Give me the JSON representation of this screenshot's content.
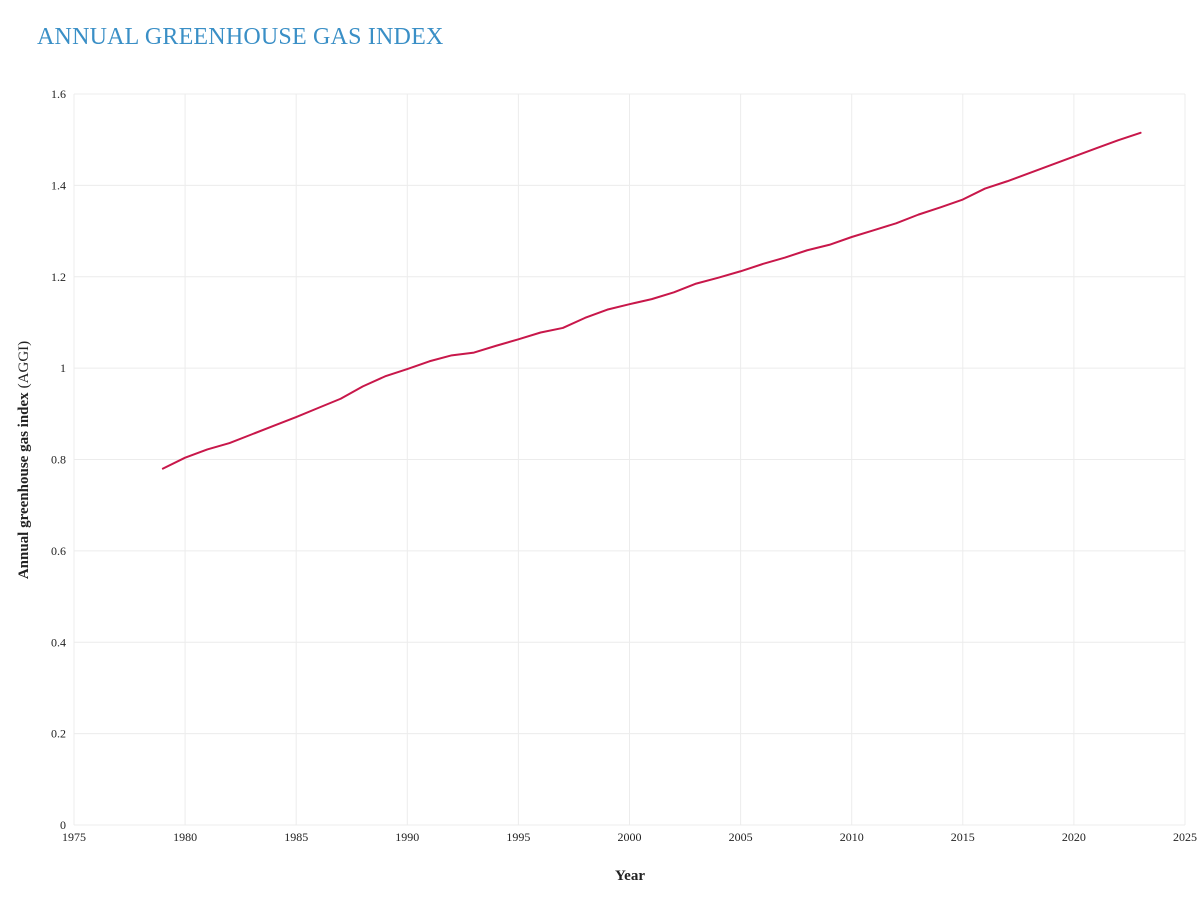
{
  "chart_data": {
    "type": "line",
    "title": "ANNUAL GREENHOUSE GAS INDEX",
    "title_color": "#3a8fc6",
    "xlabel": "Year",
    "ylabel": "Annual greenhouse gas index",
    "ylabel_unit": "(AGGI)",
    "xlim": [
      1975,
      2025
    ],
    "ylim": [
      0,
      1.6
    ],
    "x_ticks": [
      1975,
      1980,
      1985,
      1990,
      1995,
      2000,
      2005,
      2010,
      2015,
      2020,
      2025
    ],
    "y_ticks": [
      0,
      0.2,
      0.4,
      0.6,
      0.8,
      1,
      1.2,
      1.4,
      1.6
    ],
    "y_tick_labels": [
      "0",
      "0.2",
      "0.4",
      "0.6",
      "0.8",
      "1",
      "1.2",
      "1.4",
      "1.6"
    ],
    "grid": true,
    "line_color": "#c8174a",
    "series": [
      {
        "x": [
          1979,
          1980,
          1981,
          1982,
          1983,
          1984,
          1985,
          1986,
          1987,
          1988,
          1989,
          1990,
          1991,
          1992,
          1993,
          1994,
          1995,
          1996,
          1997,
          1998,
          1999,
          2000,
          2001,
          2002,
          2003,
          2004,
          2005,
          2006,
          2007,
          2008,
          2009,
          2010,
          2011,
          2012,
          2013,
          2014,
          2015,
          2016,
          2017,
          2018,
          2019,
          2020,
          2021,
          2022,
          2023
        ],
        "values": [
          0.78,
          0.804,
          0.822,
          0.836,
          0.855,
          0.874,
          0.893,
          0.913,
          0.933,
          0.96,
          0.982,
          0.998,
          1.015,
          1.028,
          1.034,
          1.049,
          1.063,
          1.078,
          1.088,
          1.11,
          1.128,
          1.14,
          1.151,
          1.166,
          1.185,
          1.198,
          1.212,
          1.228,
          1.242,
          1.258,
          1.27,
          1.287,
          1.302,
          1.317,
          1.336,
          1.352,
          1.369,
          1.393,
          1.409,
          1.427,
          1.445,
          1.463,
          1.481,
          1.499,
          1.515
        ]
      }
    ]
  }
}
